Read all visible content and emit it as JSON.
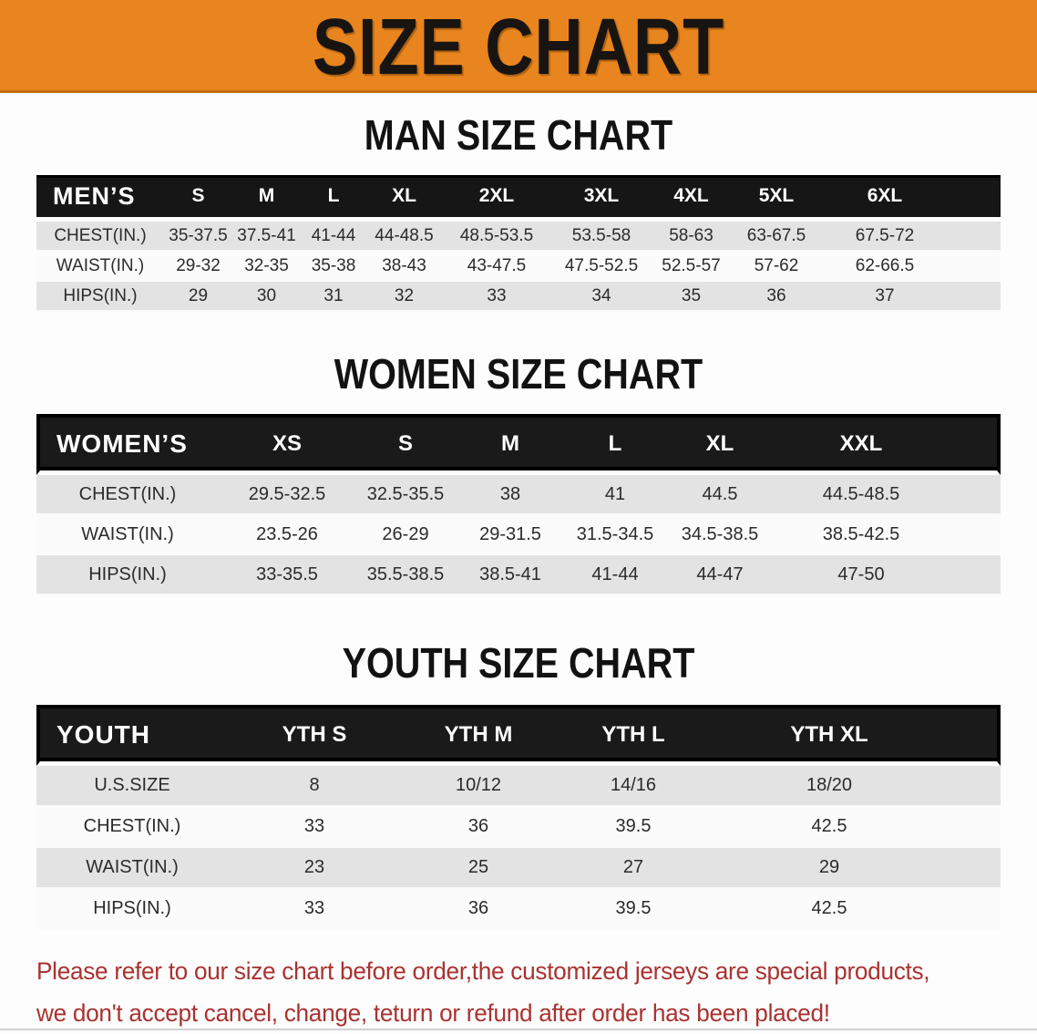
{
  "banner": {
    "title": "SIZE CHART",
    "bg_color": "#E8851E",
    "text_color": "#181412"
  },
  "sections": [
    {
      "id": "mens",
      "heading": "MAN SIZE CHART",
      "table": {
        "header_label": "MEN’S",
        "columns": [
          "S",
          "M",
          "L",
          "XL",
          "2XL",
          "3XL",
          "4XL",
          "5XL",
          "6XL"
        ],
        "rows": [
          {
            "label": "CHEST(IN.)",
            "values": [
              "35-37.5",
              "37.5-41",
              "41-44",
              "44-48.5",
              "48.5-53.5",
              "53.5-58",
              "58-63",
              "63-67.5",
              "67.5-72"
            ]
          },
          {
            "label": "WAIST(IN.)",
            "values": [
              "29-32",
              "32-35",
              "35-38",
              "38-43",
              "43-47.5",
              "47.5-52.5",
              "52.5-57",
              "57-62",
              "62-66.5"
            ]
          },
          {
            "label": "HIPS(IN.)",
            "values": [
              "29",
              "30",
              "31",
              "32",
              "33",
              "34",
              "35",
              "36",
              "37"
            ]
          }
        ]
      }
    },
    {
      "id": "womens",
      "heading": "WOMEN SIZE CHART",
      "table": {
        "header_label": "WOMEN’S",
        "columns": [
          "XS",
          "S",
          "M",
          "L",
          "XL",
          "XXL"
        ],
        "rows": [
          {
            "label": "CHEST(IN.)",
            "values": [
              "29.5-32.5",
              "32.5-35.5",
              "38",
              "41",
              "44.5",
              "44.5-48.5"
            ]
          },
          {
            "label": "WAIST(IN.)",
            "values": [
              "23.5-26",
              "26-29",
              "29-31.5",
              "31.5-34.5",
              "34.5-38.5",
              "38.5-42.5"
            ]
          },
          {
            "label": "HIPS(IN.)",
            "values": [
              "33-35.5",
              "35.5-38.5",
              "38.5-41",
              "41-44",
              "44-47",
              "47-50"
            ]
          }
        ]
      }
    },
    {
      "id": "youth",
      "heading": "YOUTH SIZE CHART",
      "table": {
        "header_label": "YOUTH",
        "columns": [
          "YTH S",
          "YTH M",
          "YTH L",
          "YTH XL"
        ],
        "rows": [
          {
            "label": "U.S.SIZE",
            "values": [
              "8",
              "10/12",
              "14/16",
              "18/20"
            ]
          },
          {
            "label": "CHEST(IN.)",
            "values": [
              "33",
              "36",
              "39.5",
              "42.5"
            ]
          },
          {
            "label": "WAIST(IN.)",
            "values": [
              "23",
              "25",
              "27",
              "29"
            ]
          },
          {
            "label": "HIPS(IN.)",
            "values": [
              "33",
              "36",
              "39.5",
              "42.5"
            ]
          }
        ]
      }
    }
  ],
  "footer": {
    "line1": "Please refer to our size chart before order,the customized jerseys are special products,",
    "line2": "we don't accept cancel, change, teturn or refund after order has been placed!",
    "text_color": "#A93230"
  },
  "colors": {
    "header_band": "#161616",
    "stripe_gray": "#E3E3E3",
    "stripe_white": "#FBFBFB"
  }
}
